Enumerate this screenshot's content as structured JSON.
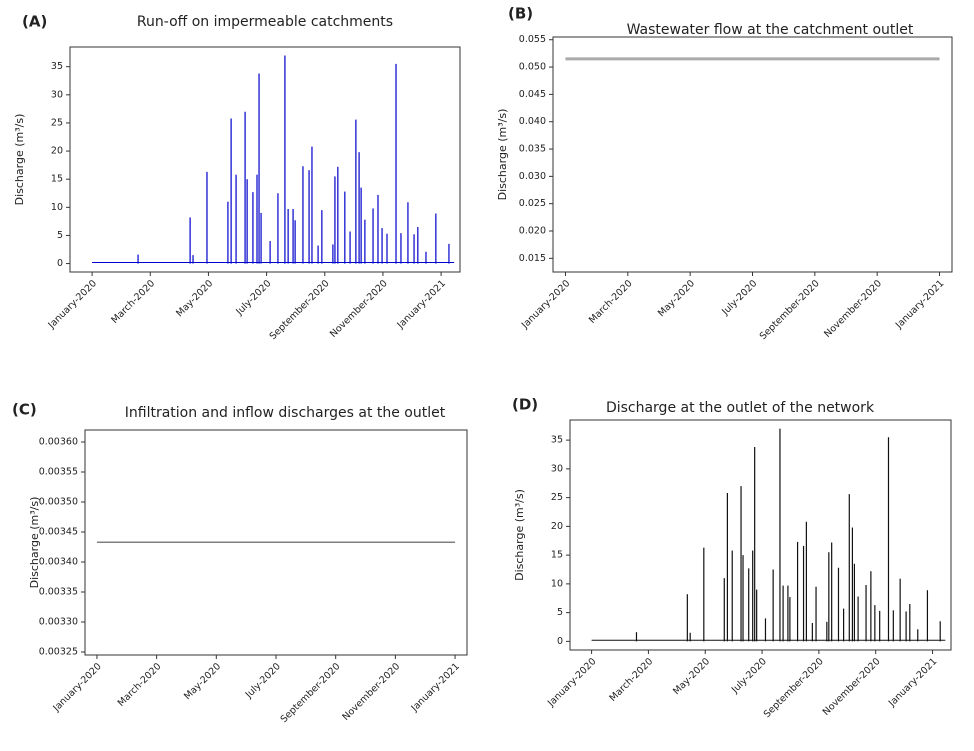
{
  "chart_data": [
    {
      "type": "spike",
      "panel_label": "(A)",
      "title": "Run-off on impermeable catchments",
      "y_label": "Discharge (m³/s)",
      "color": "#0000cc",
      "x": [
        0,
        1.58,
        3.37,
        3.47,
        3.95,
        4.67,
        4.78,
        4.95,
        5.26,
        5.33,
        5.53,
        5.67,
        5.74,
        5.81,
        6.12,
        6.39,
        6.63,
        6.74,
        6.91,
        6.98,
        7.25,
        7.46,
        7.56,
        7.77,
        7.9,
        8.28,
        8.35,
        8.45,
        8.69,
        8.87,
        9.07,
        9.18,
        9.25,
        9.38,
        9.66,
        9.83,
        9.97,
        10.14,
        10.45,
        10.62,
        10.86,
        11.07,
        11.2,
        11.48,
        11.82,
        12.27,
        12.45
      ],
      "values": [
        0.2,
        1.6,
        8.2,
        1.5,
        16.3,
        11,
        25.8,
        15.8,
        27,
        15,
        12.7,
        15.8,
        33.8,
        9,
        4,
        12.5,
        37,
        9.7,
        9.7,
        7.7,
        17.3,
        16.6,
        20.8,
        3.2,
        9.5,
        3.4,
        15.5,
        17.2,
        12.8,
        5.7,
        25.6,
        19.8,
        13.5,
        7.8,
        9.8,
        12.2,
        6.3,
        5.3,
        35.5,
        5.4,
        10.9,
        5.2,
        6.5,
        2.1,
        8.9,
        3.5,
        0.2
      ],
      "xlim": [
        -0.76,
        12.65
      ],
      "ylim": [
        -1.5,
        38.5
      ],
      "yticks": [
        0,
        5,
        10,
        15,
        20,
        25,
        30,
        35
      ],
      "xticks": [
        {
          "value": 0,
          "label": "January-2020"
        },
        {
          "value": 2,
          "label": "March-2020"
        },
        {
          "value": 4,
          "label": "May-2020"
        },
        {
          "value": 6,
          "label": "July-2020"
        },
        {
          "value": 8,
          "label": "September-2020"
        },
        {
          "value": 10,
          "label": "November-2020"
        },
        {
          "value": 12,
          "label": "January-2021"
        }
      ]
    },
    {
      "type": "line",
      "panel_label": "(B)",
      "title": "Wastewater flow at the catchment outlet",
      "y_label": "Discharge (m³/s)",
      "color": "#aaaaaa",
      "x": [
        0,
        12
      ],
      "values": [
        0.0515,
        0.0515
      ],
      "xlim": [
        -0.4,
        12.4
      ],
      "ylim": [
        0.0125,
        0.0555
      ],
      "yticks": [
        0.015,
        {
          "value": 0.02,
          "label": "0.020"
        },
        0.025,
        {
          "value": 0.03,
          "label": "0.030"
        },
        0.035,
        {
          "value": 0.04,
          "label": "0.040"
        },
        0.045,
        {
          "value": 0.05,
          "label": "0.050"
        },
        0.055
      ],
      "xticks": [
        {
          "value": 0,
          "label": "January-2020"
        },
        {
          "value": 2,
          "label": "March-2020"
        },
        {
          "value": 4,
          "label": "May-2020"
        },
        {
          "value": 6,
          "label": "July-2020"
        },
        {
          "value": 8,
          "label": "September-2020"
        },
        {
          "value": 10,
          "label": "November-2020"
        },
        {
          "value": 12,
          "label": "January-2021"
        }
      ]
    },
    {
      "type": "line",
      "panel_label": "(C)",
      "title": "Infiltration and inflow discharges at the outlet",
      "y_label": "Discharge (m³/s)",
      "color": "#555555",
      "x": [
        0,
        12
      ],
      "values": [
        0.003433,
        0.003433
      ],
      "xlim": [
        -0.4,
        12.4
      ],
      "ylim": [
        0.003245,
        0.00362
      ],
      "yticks": [
        0.00325,
        {
          "value": 0.0033,
          "label": "0.00330"
        },
        0.00335,
        {
          "value": 0.0034,
          "label": "0.00340"
        },
        0.00345,
        {
          "value": 0.0035,
          "label": "0.00350"
        },
        0.00355,
        {
          "value": 0.0036,
          "label": "0.00360"
        }
      ],
      "xticks": [
        {
          "value": 0,
          "label": "January-2020"
        },
        {
          "value": 2,
          "label": "March-2020"
        },
        {
          "value": 4,
          "label": "May-2020"
        },
        {
          "value": 6,
          "label": "July-2020"
        },
        {
          "value": 8,
          "label": "September-2020"
        },
        {
          "value": 10,
          "label": "November-2020"
        },
        {
          "value": 12,
          "label": "January-2021"
        }
      ]
    },
    {
      "type": "spike",
      "panel_label": "(D)",
      "title": "Discharge at the outlet of the network",
      "y_label": "Discharge (m³/s)",
      "color": "#111111",
      "x": [
        0,
        1.58,
        3.37,
        3.47,
        3.95,
        4.67,
        4.78,
        4.95,
        5.26,
        5.33,
        5.53,
        5.67,
        5.74,
        5.81,
        6.12,
        6.39,
        6.63,
        6.74,
        6.91,
        6.98,
        7.25,
        7.46,
        7.56,
        7.77,
        7.9,
        8.28,
        8.35,
        8.45,
        8.69,
        8.87,
        9.07,
        9.18,
        9.25,
        9.38,
        9.66,
        9.83,
        9.97,
        10.14,
        10.45,
        10.62,
        10.86,
        11.07,
        11.2,
        11.48,
        11.82,
        12.27,
        12.45
      ],
      "values": [
        0.2,
        1.6,
        8.2,
        1.5,
        16.3,
        11,
        25.8,
        15.8,
        27,
        15,
        12.7,
        15.8,
        33.8,
        9,
        4,
        12.5,
        37,
        9.7,
        9.7,
        7.7,
        17.3,
        16.6,
        20.8,
        3.2,
        9.5,
        3.4,
        15.5,
        17.2,
        12.8,
        5.7,
        25.6,
        19.8,
        13.5,
        7.8,
        9.8,
        12.2,
        6.3,
        5.3,
        35.5,
        5.4,
        10.9,
        5.2,
        6.5,
        2.1,
        8.9,
        3.5,
        0.2
      ],
      "xlim": [
        -0.76,
        12.65
      ],
      "ylim": [
        -1.5,
        38.5
      ],
      "yticks": [
        0,
        5,
        10,
        15,
        20,
        25,
        30,
        35
      ],
      "xticks": [
        {
          "value": 0,
          "label": "January-2020"
        },
        {
          "value": 2,
          "label": "March-2020"
        },
        {
          "value": 4,
          "label": "May-2020"
        },
        {
          "value": 6,
          "label": "July-2020"
        },
        {
          "value": 8,
          "label": "September-2020"
        },
        {
          "value": 10,
          "label": "November-2020"
        },
        {
          "value": 12,
          "label": "January-2021"
        }
      ]
    }
  ]
}
